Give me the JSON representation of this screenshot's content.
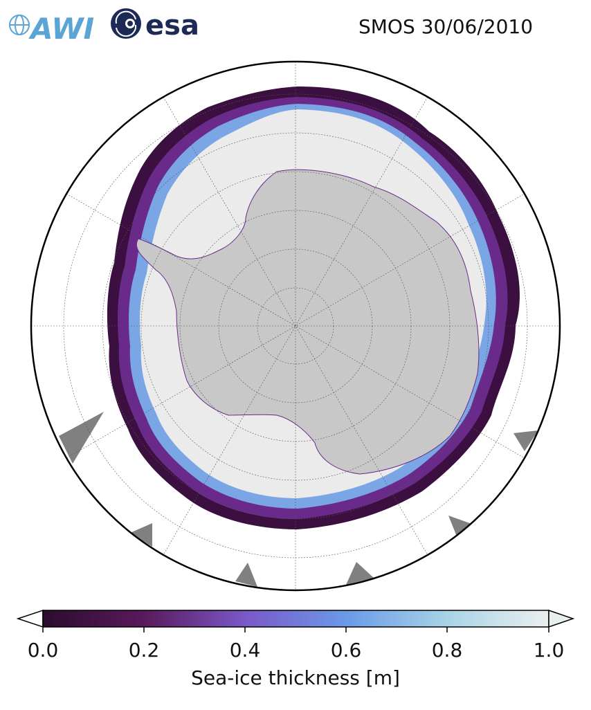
{
  "header": {
    "title": "SMOS 30/06/2010",
    "logo_awi_text": "AWI",
    "logo_esa_text": "esa"
  },
  "map": {
    "projection": "south-polar-stereographic",
    "gridlines": true,
    "colors": {
      "land": "#c8c8c8",
      "thick_ice": "#ebebeb",
      "ocean": "#ffffff",
      "missing_data": "#808080",
      "thin_ice_dark": "#3b0f3f",
      "thin_ice_mid": "#6a2a8a",
      "thin_ice_light": "#7aa6e6"
    }
  },
  "colorbar": {
    "label": "Sea-ice thickness [m]",
    "ticks": [
      "0.0",
      "0.2",
      "0.4",
      "0.6",
      "0.8",
      "1.0"
    ],
    "range": [
      0.0,
      1.0
    ],
    "extend": "both",
    "stops": [
      "#2b0c2e",
      "#5a1a5c",
      "#7a58c8",
      "#6a9ae8",
      "#a8d4e6",
      "#ebefef"
    ]
  }
}
